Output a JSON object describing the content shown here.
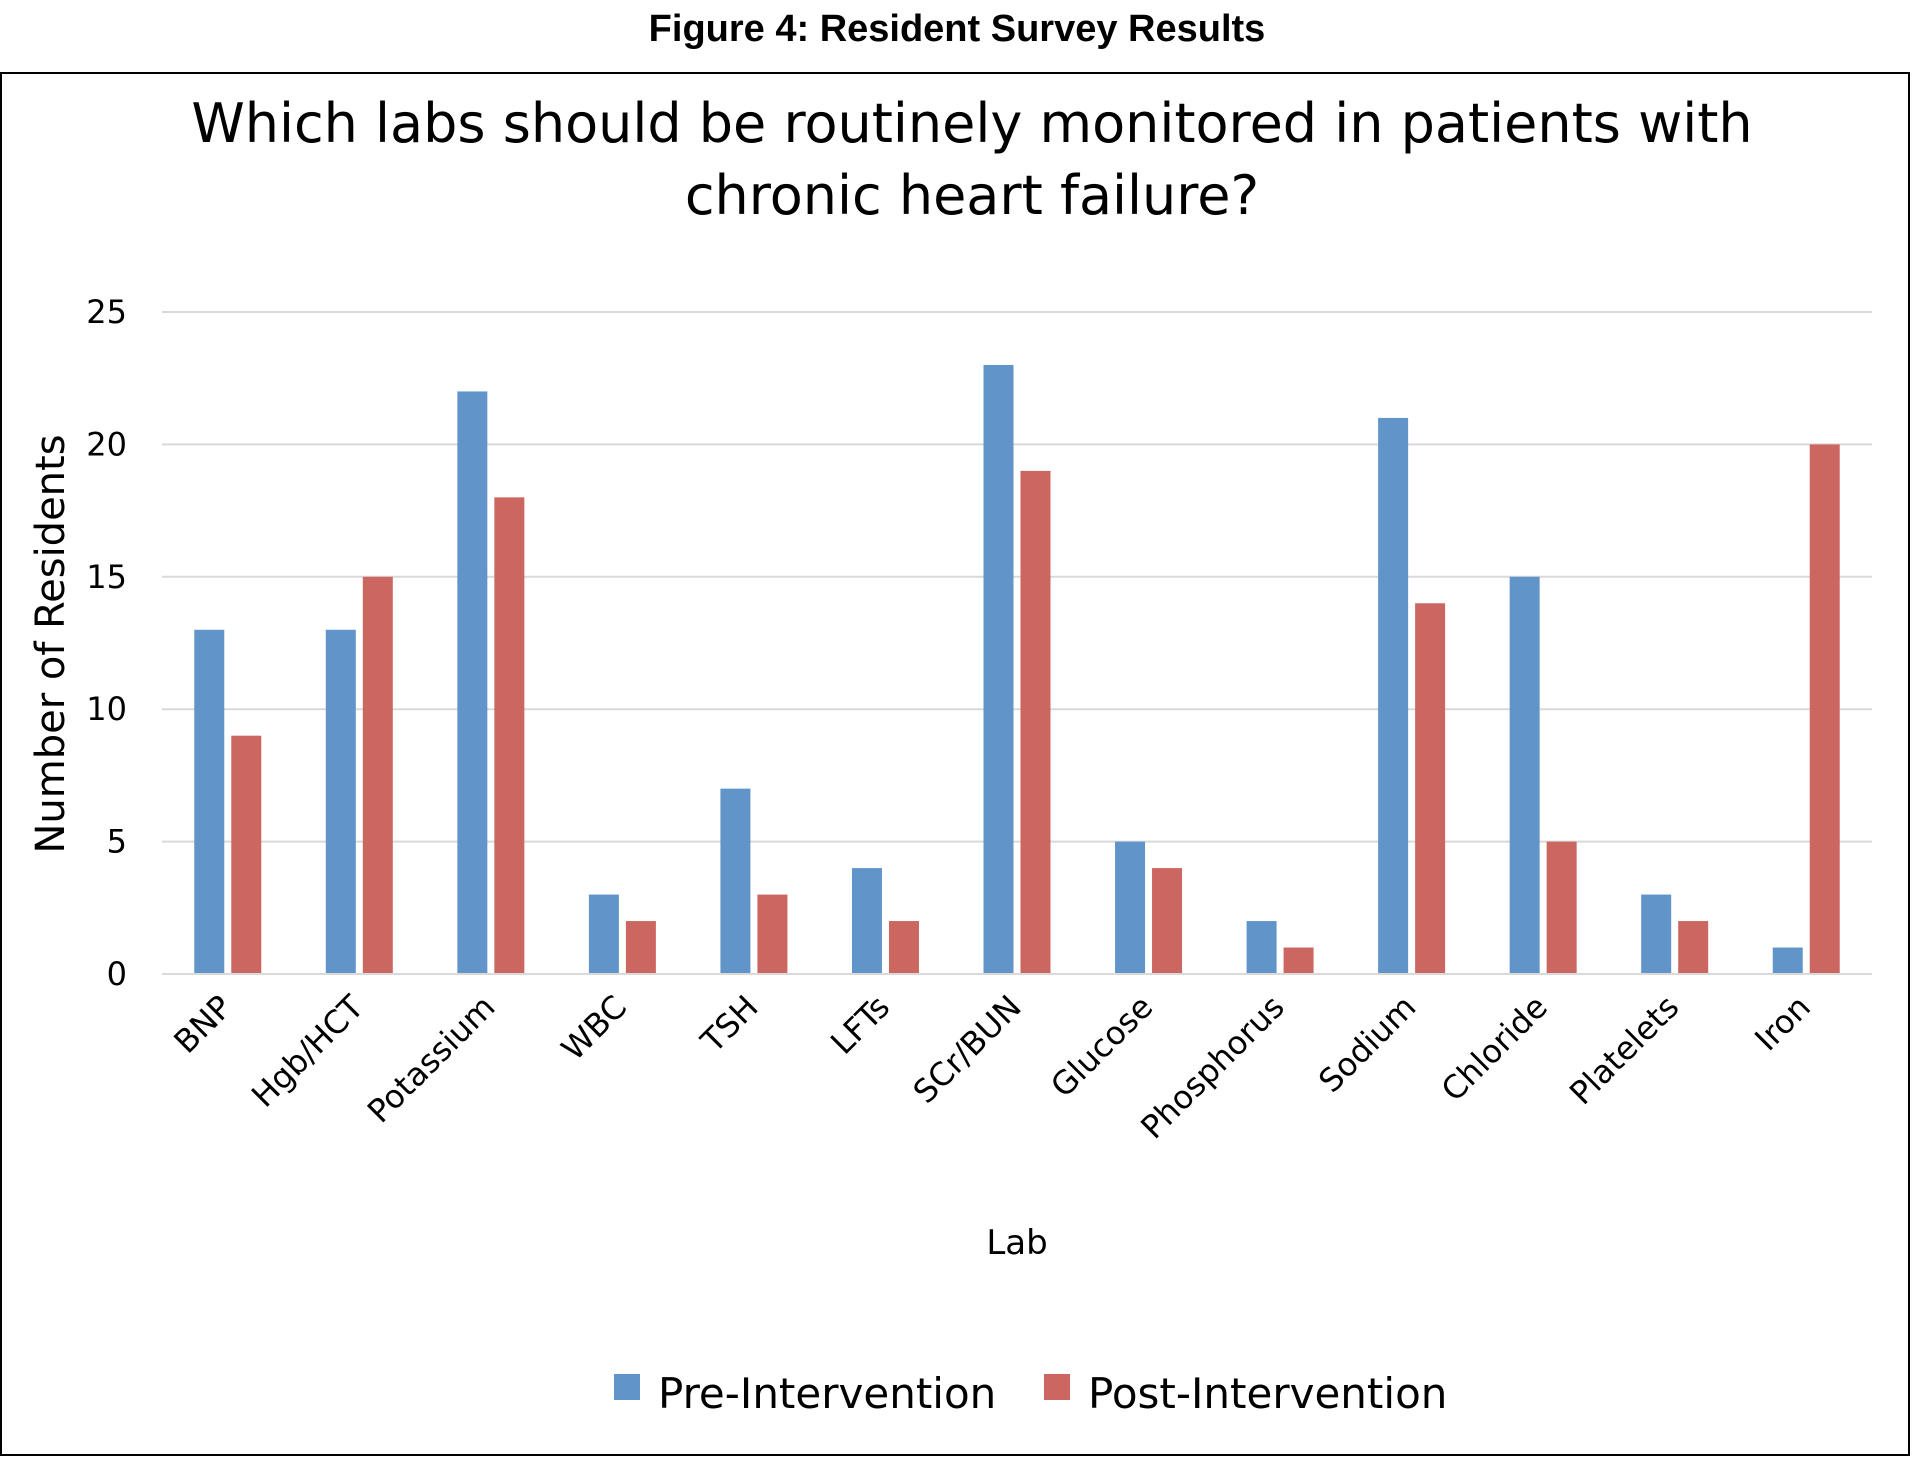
{
  "figure_caption": "Figure 4: Resident Survey Results",
  "chart_data": {
    "type": "bar",
    "title_lines": [
      "Which labs should be routinely monitored in patients with",
      "chronic heart failure?"
    ],
    "xlabel": "Lab",
    "ylabel": "Number of Residents",
    "ylim": [
      0,
      25
    ],
    "yticks": [
      "0",
      "5",
      "10",
      "15",
      "20",
      "25"
    ],
    "grid": true,
    "legend_position": "bottom",
    "categories": [
      "BNP",
      "Hgb/HCT",
      "Potassium",
      "WBC",
      "TSH",
      "LFTs",
      "SCr/BUN",
      "Glucose",
      "Phosphorus",
      "Sodium",
      "Chloride",
      "Platelets",
      "Iron"
    ],
    "series": [
      {
        "name": "Pre-Intervention",
        "color": "#6195C9",
        "values": [
          13,
          13,
          22,
          3,
          7,
          4,
          23,
          5,
          2,
          21,
          15,
          3,
          1
        ]
      },
      {
        "name": "Post-Intervention",
        "color": "#CC6661",
        "values": [
          9,
          15,
          18,
          2,
          3,
          2,
          19,
          4,
          1,
          14,
          5,
          2,
          20
        ]
      }
    ]
  }
}
